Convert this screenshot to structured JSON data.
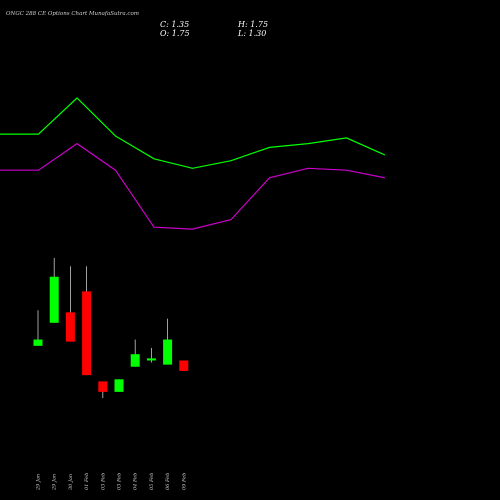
{
  "chart_data": {
    "type": "candlestick",
    "title": "ONGC 288 CE Options Chart MunafaSutra.com",
    "ohlc_readout": {
      "close": "C: 1.35",
      "high": "H: 1.75",
      "open": "O: 1.75",
      "low": "L: 1.30"
    },
    "categories": [
      "29 Jan",
      "29 Jan",
      "30 Jan",
      "01 Feb",
      "03 Feb",
      "03 Feb",
      "04 Feb",
      "05 Feb",
      "06 Feb",
      "09 Feb"
    ],
    "ylim": [
      0.2,
      4.5
    ],
    "candles": [
      {
        "open": 2.45,
        "close": 2.6,
        "high": 3.3,
        "low": 2.45
      },
      {
        "open": 3.0,
        "close": 4.1,
        "high": 4.55,
        "low": 3.0
      },
      {
        "open": 3.25,
        "close": 2.55,
        "high": 4.35,
        "low": 2.55
      },
      {
        "open": 3.75,
        "close": 1.75,
        "high": 4.35,
        "low": 1.75
      },
      {
        "open": 1.6,
        "close": 1.35,
        "high": 1.6,
        "low": 1.2
      },
      {
        "open": 1.35,
        "close": 1.65,
        "high": 1.65,
        "low": 1.35
      },
      {
        "open": 1.95,
        "close": 2.25,
        "high": 2.6,
        "low": 1.95
      },
      {
        "open": 2.1,
        "close": 2.15,
        "high": 2.4,
        "low": 2.05
      },
      {
        "open": 2.0,
        "close": 2.6,
        "high": 3.1,
        "low": 2.0
      },
      {
        "open": 2.1,
        "close": 1.85,
        "high": 2.1,
        "low": 1.85
      }
    ],
    "overlay_lines": [
      {
        "color": "#00ff00",
        "x": [
          0,
          1,
          2,
          3,
          4,
          5,
          6,
          7,
          8,
          9,
          10
        ],
        "values": [
          7.55,
          7.55,
          8.5,
          7.5,
          6.9,
          6.65,
          6.85,
          7.2,
          7.3,
          7.45,
          7.0
        ]
      },
      {
        "color": "#cc00cc",
        "x": [
          0,
          1,
          2,
          3,
          4,
          5,
          6,
          7,
          8,
          9,
          10
        ],
        "values": [
          6.6,
          6.6,
          7.3,
          6.6,
          5.1,
          5.05,
          5.3,
          6.4,
          6.65,
          6.6,
          6.4
        ]
      }
    ],
    "overlay_ylim": [
      4.5,
      9.5
    ],
    "colors": {
      "up": "#00ff00",
      "down": "#ff0000",
      "background": "#000000",
      "wick": "#c8c8c8"
    }
  }
}
